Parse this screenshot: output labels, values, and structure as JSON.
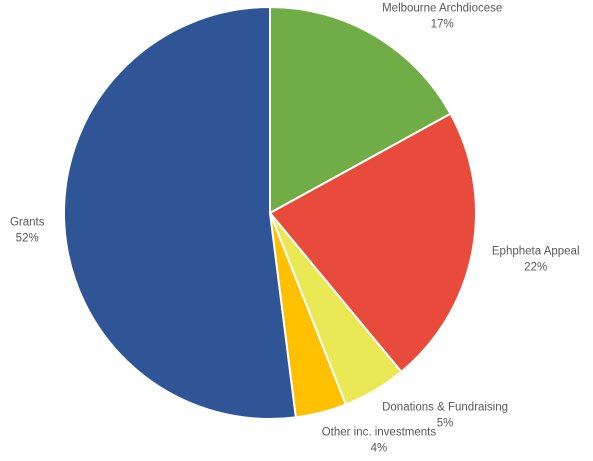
{
  "chart_data": {
    "type": "pie",
    "title": "",
    "start_angle_deg": 0,
    "direction": "clockwise",
    "slices": [
      {
        "label": "Melbourne Archdiocese",
        "value": 17,
        "value_label": "17%",
        "color": "#70AD47"
      },
      {
        "label": "Ephpheta Appeal",
        "value": 22,
        "value_label": "22%",
        "color": "#E84A3B"
      },
      {
        "label": "Donations & Fundraising",
        "value": 5,
        "value_label": "5%",
        "color": "#EAE855"
      },
      {
        "label": "Other inc. investments",
        "value": 4,
        "value_label": "4%",
        "color": "#FFC000"
      },
      {
        "label": "Grants",
        "value": 52,
        "value_label": "52%",
        "color": "#2F5597"
      }
    ],
    "legend": "none",
    "data_labels": "outside"
  }
}
